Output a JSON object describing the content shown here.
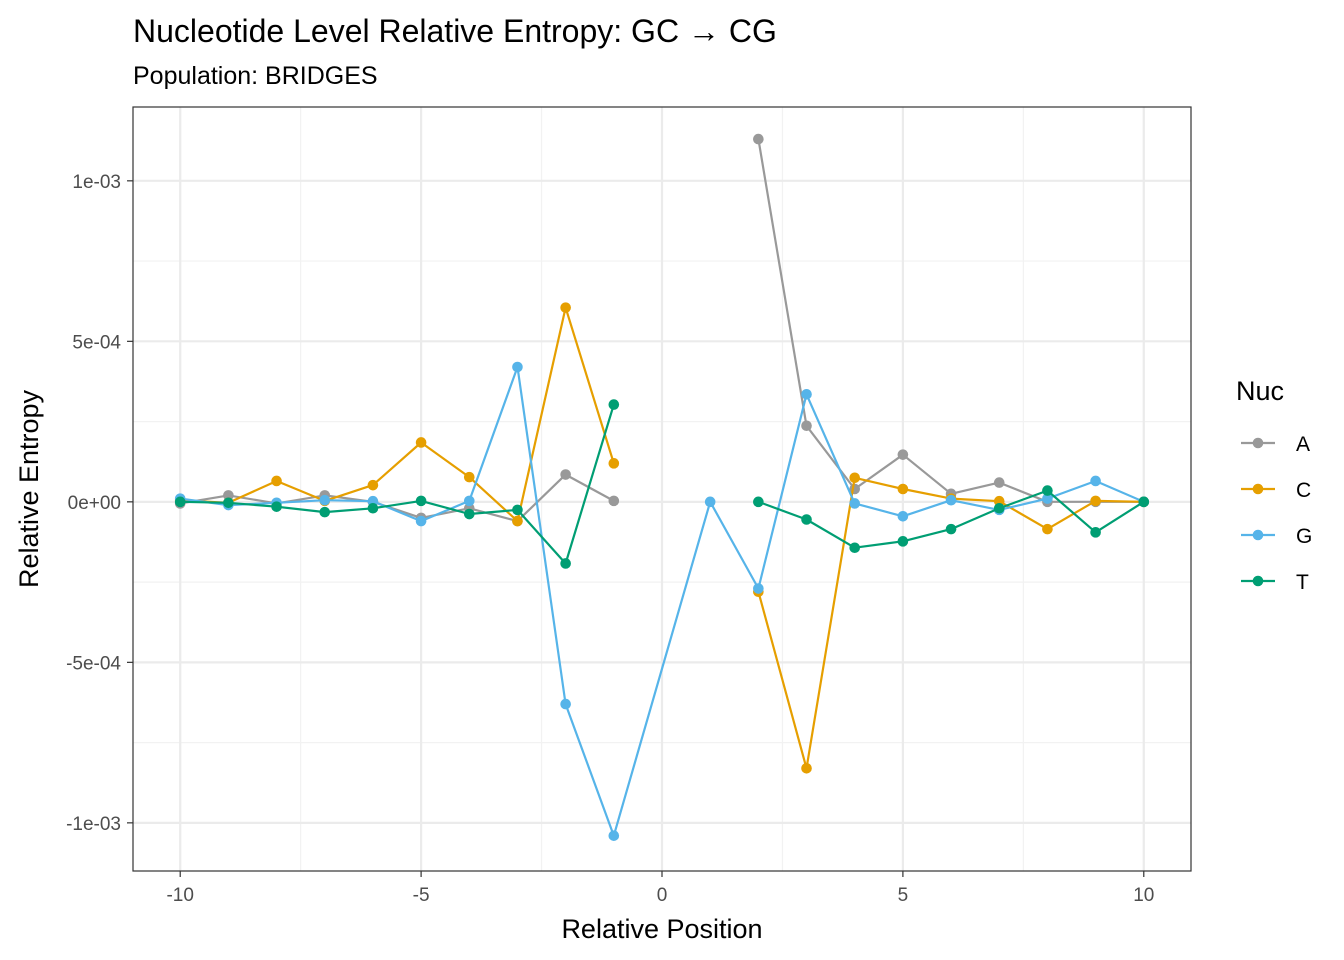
{
  "chart_data": {
    "type": "line",
    "title": "Nucleotide Level Relative Entropy: GC → CG",
    "subtitle": "Population: BRIDGES",
    "xlabel": "Relative Position",
    "ylabel": "Relative Entropy",
    "xlim": [
      -10.98,
      10.98
    ],
    "ylim": [
      -0.00115,
      0.00123
    ],
    "x_ticks": [
      -10,
      -5,
      0,
      5,
      10
    ],
    "x_tick_labels": [
      "-10",
      "-5",
      "0",
      "5",
      "10"
    ],
    "y_ticks": [
      -0.001,
      -0.0005,
      0,
      0.0005,
      0.001
    ],
    "y_tick_labels": [
      "-1e-03",
      "-5e-04",
      "0e+00",
      "5e-04",
      "1e-03"
    ],
    "grid": true,
    "legend": {
      "title": "Nuc",
      "position": "right"
    },
    "series": [
      {
        "name": "A",
        "color": "#999999",
        "segments": [
          [
            [
              -10,
              -5e-06
            ],
            [
              -9,
              2e-05
            ],
            [
              -8,
              -5e-06
            ],
            [
              -7,
              2e-05
            ],
            [
              -6,
              0.0
            ],
            [
              -5,
              -5e-05
            ],
            [
              -4,
              -2e-05
            ],
            [
              -3,
              -6e-05
            ],
            [
              -2,
              8.5e-05
            ],
            [
              -1,
              3e-06
            ]
          ],
          [
            [
              2,
              0.00113
            ],
            [
              3,
              0.000237
            ],
            [
              4,
              4e-05
            ],
            [
              5,
              0.000147
            ],
            [
              6,
              2.5e-05
            ],
            [
              7,
              6e-05
            ],
            [
              8,
              0.0
            ],
            [
              9,
              0.0
            ],
            [
              10,
              0.0
            ]
          ]
        ]
      },
      {
        "name": "C",
        "color": "#E69F00",
        "segments": [
          [
            [
              -10,
              5e-06
            ],
            [
              -9,
              -3e-06
            ],
            [
              -8,
              6.5e-05
            ],
            [
              -7,
              3e-06
            ],
            [
              -6,
              5.2e-05
            ],
            [
              -5,
              0.000185
            ],
            [
              -4,
              7.7e-05
            ],
            [
              -3,
              -6e-05
            ],
            [
              -2,
              0.000605
            ],
            [
              -1,
              0.00012
            ]
          ],
          [
            [
              2,
              -0.00028
            ],
            [
              3,
              -0.00083
            ],
            [
              4,
              7.5e-05
            ],
            [
              5,
              4e-05
            ],
            [
              6,
              1e-05
            ],
            [
              7,
              2e-06
            ],
            [
              8,
              -8.5e-05
            ],
            [
              9,
              3e-06
            ],
            [
              10,
              0.0
            ]
          ]
        ]
      },
      {
        "name": "G",
        "color": "#56B4E9",
        "segments": [
          [
            [
              -10,
              1e-05
            ],
            [
              -9,
              -1e-05
            ],
            [
              -8,
              -3e-06
            ],
            [
              -7,
              5e-06
            ],
            [
              -6,
              2e-06
            ],
            [
              -5,
              -6e-05
            ],
            [
              -4,
              3e-06
            ],
            [
              -3,
              0.00042
            ],
            [
              -2,
              -0.00063
            ],
            [
              -1,
              -0.00104
            ],
            [
              1,
              0.0
            ],
            [
              2,
              -0.00027
            ],
            [
              3,
              0.000335
            ],
            [
              4,
              -5e-06
            ],
            [
              5,
              -4.5e-05
            ],
            [
              6,
              5e-06
            ],
            [
              7,
              -2.5e-05
            ],
            [
              8,
              1e-05
            ],
            [
              9,
              6.5e-05
            ],
            [
              10,
              0.0
            ]
          ]
        ]
      },
      {
        "name": "T",
        "color": "#009E73",
        "segments": [
          [
            [
              -10,
              0.0
            ],
            [
              -9,
              -3e-06
            ],
            [
              -8,
              -1.5e-05
            ],
            [
              -7,
              -3.2e-05
            ],
            [
              -6,
              -2e-05
            ],
            [
              -5,
              3e-06
            ],
            [
              -4,
              -3.8e-05
            ],
            [
              -3,
              -2.5e-05
            ],
            [
              -2,
              -0.000192
            ],
            [
              -1,
              0.000303
            ]
          ],
          [
            [
              2,
              0.0
            ],
            [
              3,
              -5.5e-05
            ],
            [
              4,
              -0.000143
            ],
            [
              5,
              -0.000123
            ],
            [
              6,
              -8.5e-05
            ],
            [
              7,
              -2e-05
            ],
            [
              8,
              3.5e-05
            ],
            [
              9,
              -9.5e-05
            ],
            [
              10,
              0.0
            ]
          ]
        ]
      }
    ]
  }
}
